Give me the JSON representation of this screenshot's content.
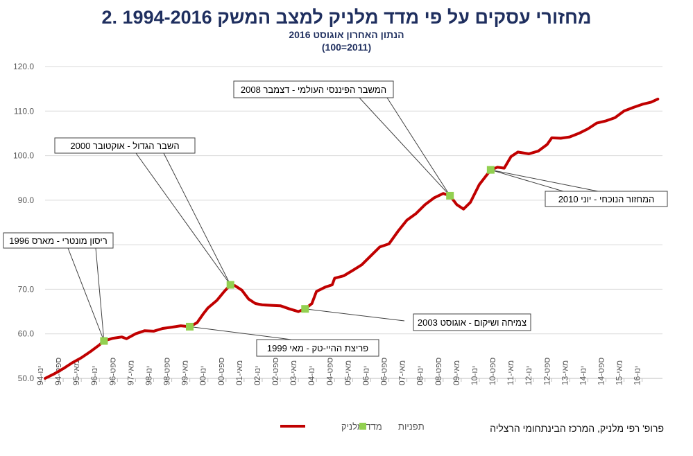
{
  "chart_data": {
    "type": "line",
    "title": "2. מחזורי עסקים על פי מדד מלניק למצב המשק 1994-2016",
    "subtitle": "הנתון האחרון אוגוסט 2016",
    "subtitle2": "(100=2011)",
    "ylim": [
      50,
      120
    ],
    "yticks": [
      "50.0",
      "60.0",
      "70.0",
      "80.0",
      "90.0",
      "100.0",
      "110.0",
      "120.0"
    ],
    "grid": true,
    "x_range": [
      1994.0,
      2016.75
    ],
    "xticks": [
      {
        "t": 1994.0,
        "label": "ינו-94"
      },
      {
        "t": 1994.667,
        "label": "ספט-94"
      },
      {
        "t": 1995.333,
        "label": "מאי-95"
      },
      {
        "t": 1996.0,
        "label": "ינו-96"
      },
      {
        "t": 1996.667,
        "label": "ספט-96"
      },
      {
        "t": 1997.333,
        "label": "מאי-97"
      },
      {
        "t": 1998.0,
        "label": "ינו-98"
      },
      {
        "t": 1998.667,
        "label": "ספט-98"
      },
      {
        "t": 1999.333,
        "label": "מאי-99"
      },
      {
        "t": 2000.0,
        "label": "ינו-00"
      },
      {
        "t": 2000.667,
        "label": "ספט-00"
      },
      {
        "t": 2001.333,
        "label": "מאי-01"
      },
      {
        "t": 2002.0,
        "label": "ינו-02"
      },
      {
        "t": 2002.667,
        "label": "ספט-02"
      },
      {
        "t": 2003.333,
        "label": "מאי-03"
      },
      {
        "t": 2004.0,
        "label": "ינו-04"
      },
      {
        "t": 2004.667,
        "label": "ספט-04"
      },
      {
        "t": 2005.333,
        "label": "מאי-05"
      },
      {
        "t": 2006.0,
        "label": "ינו-06"
      },
      {
        "t": 2006.667,
        "label": "ספט-06"
      },
      {
        "t": 2007.333,
        "label": "מאי-07"
      },
      {
        "t": 2008.0,
        "label": "ינו-08"
      },
      {
        "t": 2008.667,
        "label": "ספט-08"
      },
      {
        "t": 2009.333,
        "label": "מאי-09"
      },
      {
        "t": 2010.0,
        "label": "ינו-10"
      },
      {
        "t": 2010.667,
        "label": "ספט-10"
      },
      {
        "t": 2011.333,
        "label": "מאי-11"
      },
      {
        "t": 2012.0,
        "label": "ינו-12"
      },
      {
        "t": 2012.667,
        "label": "ספט-12"
      },
      {
        "t": 2013.333,
        "label": "מאי-13"
      },
      {
        "t": 2014.0,
        "label": "ינו-14"
      },
      {
        "t": 2014.667,
        "label": "ספט-14"
      },
      {
        "t": 2015.333,
        "label": "מאי-15"
      },
      {
        "t": 2016.0,
        "label": "ינו-16"
      }
    ],
    "series": [
      {
        "name": "מדד מלניק",
        "color": "#c00000",
        "points": [
          [
            1994.0,
            50.0
          ],
          [
            1994.33,
            51.0
          ],
          [
            1994.67,
            52.2
          ],
          [
            1995.0,
            53.5
          ],
          [
            1995.33,
            54.6
          ],
          [
            1995.67,
            56.0
          ],
          [
            1996.0,
            57.5
          ],
          [
            1996.17,
            58.4
          ],
          [
            1996.5,
            59.0
          ],
          [
            1996.83,
            59.3
          ],
          [
            1997.0,
            58.9
          ],
          [
            1997.33,
            60.0
          ],
          [
            1997.67,
            60.7
          ],
          [
            1998.0,
            60.6
          ],
          [
            1998.33,
            61.2
          ],
          [
            1998.67,
            61.5
          ],
          [
            1999.0,
            61.8
          ],
          [
            1999.33,
            61.6
          ],
          [
            1999.6,
            62.5
          ],
          [
            1999.83,
            64.5
          ],
          [
            2000.0,
            65.8
          ],
          [
            2000.33,
            67.5
          ],
          [
            2000.6,
            69.5
          ],
          [
            2000.83,
            71.0
          ],
          [
            2001.0,
            70.8
          ],
          [
            2001.25,
            69.8
          ],
          [
            2001.5,
            67.8
          ],
          [
            2001.75,
            66.8
          ],
          [
            2002.0,
            66.5
          ],
          [
            2002.33,
            66.4
          ],
          [
            2002.67,
            66.3
          ],
          [
            2003.0,
            65.6
          ],
          [
            2003.33,
            65.0
          ],
          [
            2003.58,
            65.6
          ],
          [
            2003.83,
            66.8
          ],
          [
            2004.0,
            69.5
          ],
          [
            2004.33,
            70.5
          ],
          [
            2004.58,
            71.0
          ],
          [
            2004.67,
            72.5
          ],
          [
            2005.0,
            73.0
          ],
          [
            2005.33,
            74.2
          ],
          [
            2005.67,
            75.5
          ],
          [
            2006.0,
            77.5
          ],
          [
            2006.33,
            79.5
          ],
          [
            2006.67,
            80.2
          ],
          [
            2007.0,
            83.0
          ],
          [
            2007.33,
            85.5
          ],
          [
            2007.67,
            87.0
          ],
          [
            2008.0,
            89.0
          ],
          [
            2008.33,
            90.5
          ],
          [
            2008.67,
            91.5
          ],
          [
            2008.92,
            91.0
          ],
          [
            2009.17,
            89.0
          ],
          [
            2009.42,
            88.0
          ],
          [
            2009.67,
            89.5
          ],
          [
            2010.0,
            93.5
          ],
          [
            2010.42,
            96.8
          ],
          [
            2010.67,
            97.4
          ],
          [
            2010.92,
            97.2
          ],
          [
            2011.17,
            99.8
          ],
          [
            2011.42,
            100.8
          ],
          [
            2011.83,
            100.4
          ],
          [
            2012.17,
            101.0
          ],
          [
            2012.5,
            102.5
          ],
          [
            2012.67,
            104.0
          ],
          [
            2013.0,
            103.9
          ],
          [
            2013.33,
            104.2
          ],
          [
            2013.67,
            105.0
          ],
          [
            2014.0,
            106.0
          ],
          [
            2014.33,
            107.3
          ],
          [
            2014.67,
            107.8
          ],
          [
            2015.0,
            108.5
          ],
          [
            2015.33,
            110.0
          ],
          [
            2015.67,
            110.8
          ],
          [
            2016.0,
            111.5
          ],
          [
            2016.33,
            112.0
          ],
          [
            2016.58,
            112.7
          ]
        ]
      },
      {
        "name": "תפניות",
        "color": "#92d050",
        "points": [
          [
            1996.17,
            58.4
          ],
          [
            1999.33,
            61.6
          ],
          [
            2000.83,
            71.0
          ],
          [
            2003.58,
            65.6
          ],
          [
            2008.92,
            91.0
          ],
          [
            2010.42,
            96.8
          ]
        ]
      }
    ],
    "annotations": [
      {
        "text": "ריסון מונטרי - מארס 1996",
        "point": [
          1996.17,
          58.4
        ]
      },
      {
        "text": "פריצת ההיי-טק - מאי 1999",
        "point": [
          1999.33,
          61.6
        ]
      },
      {
        "text": "השבר הגדול - אוקטובר 2000",
        "point": [
          2000.83,
          71.0
        ]
      },
      {
        "text": "צמיחה ושיקום - אוגוסט 2003",
        "point": [
          2003.58,
          65.6
        ]
      },
      {
        "text": "המשבר הפיננסי העולמי - דצמבר 2008",
        "point": [
          2008.92,
          91.0
        ]
      },
      {
        "text": "המחזור הנוכחי - יוני 2010",
        "point": [
          2010.42,
          96.8
        ]
      }
    ],
    "legend": {
      "placement": "bottom"
    }
  },
  "credit": "פרופ' רפי מלניק, המרכז הבינתחומי הרצליה"
}
